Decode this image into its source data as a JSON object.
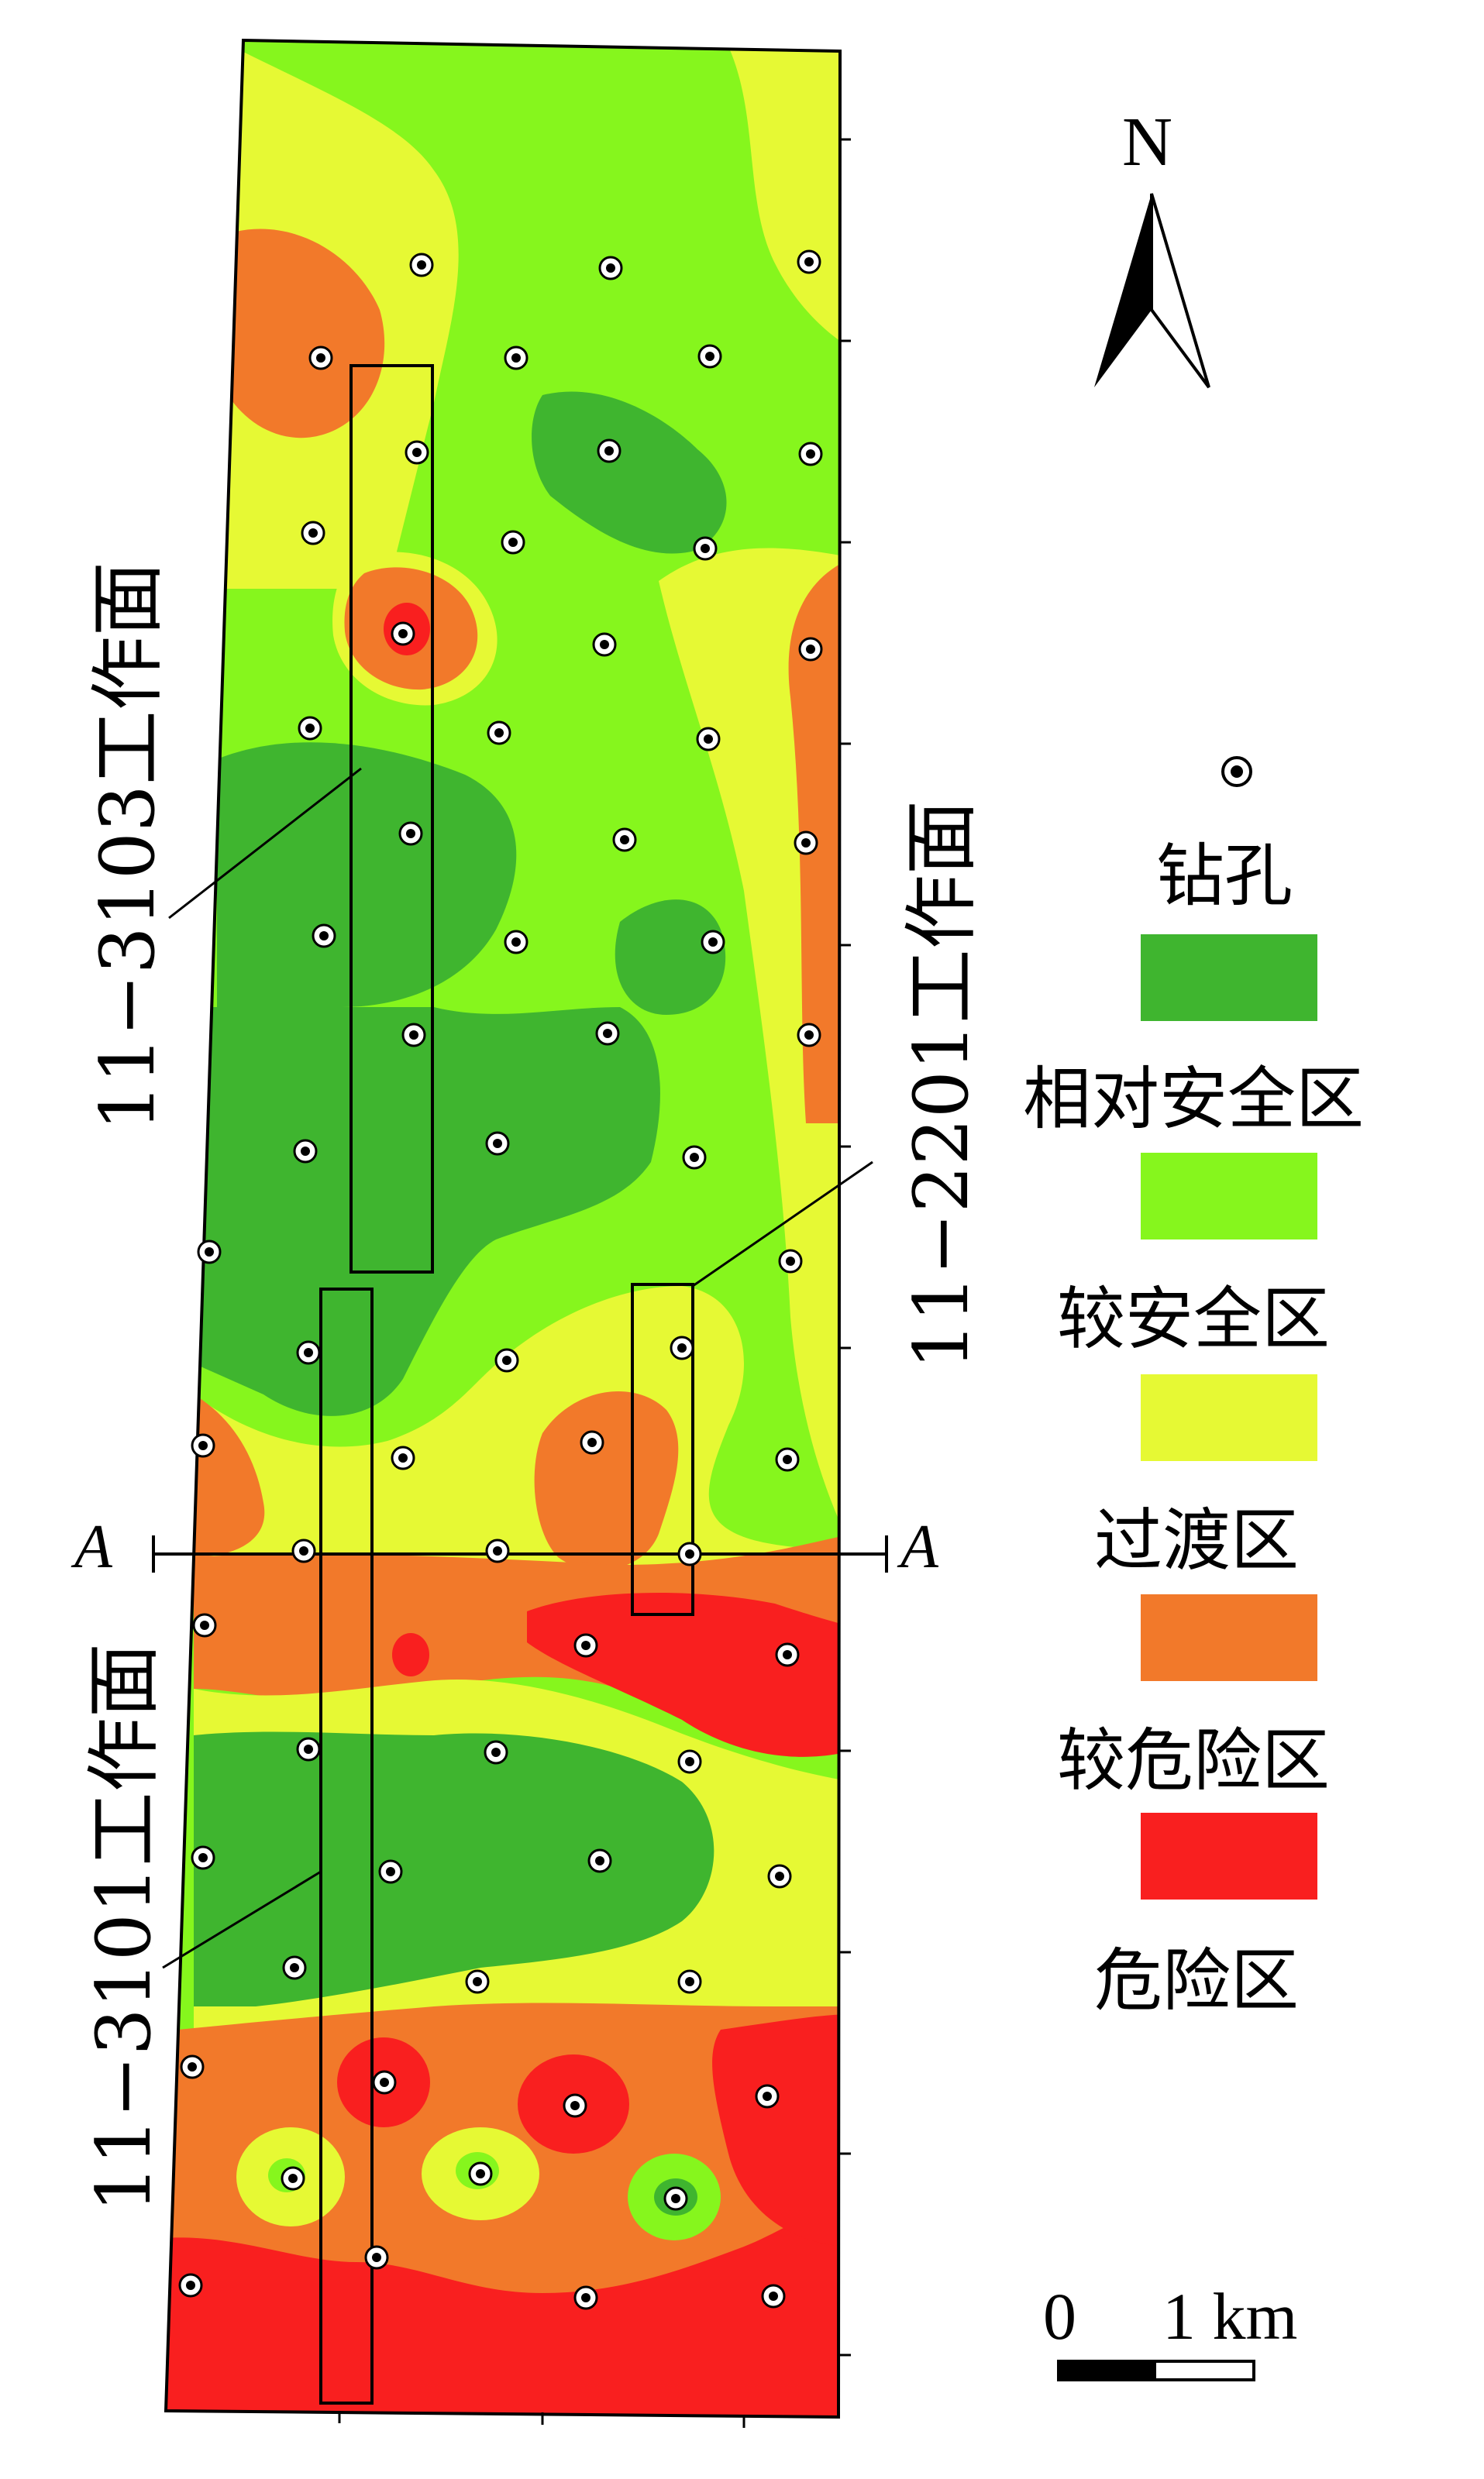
{
  "north_label": "N",
  "section_label": "A",
  "faces": [
    {
      "label": "11−3103工作面"
    },
    {
      "label": "11−2201工作面"
    },
    {
      "label": "11−3101工作面"
    }
  ],
  "legend": {
    "borehole": "钻孔",
    "zones": [
      {
        "label": "相对安全区",
        "color": "#3FB52F"
      },
      {
        "label": "较安全区",
        "color": "#86F61D"
      },
      {
        "label": "过渡区",
        "color": "#E6F934"
      },
      {
        "label": "较危险区",
        "color": "#F2792A"
      },
      {
        "label": "危险区",
        "color": "#F91F1F"
      }
    ]
  },
  "scale": {
    "zero": "0",
    "value": "1 km"
  }
}
